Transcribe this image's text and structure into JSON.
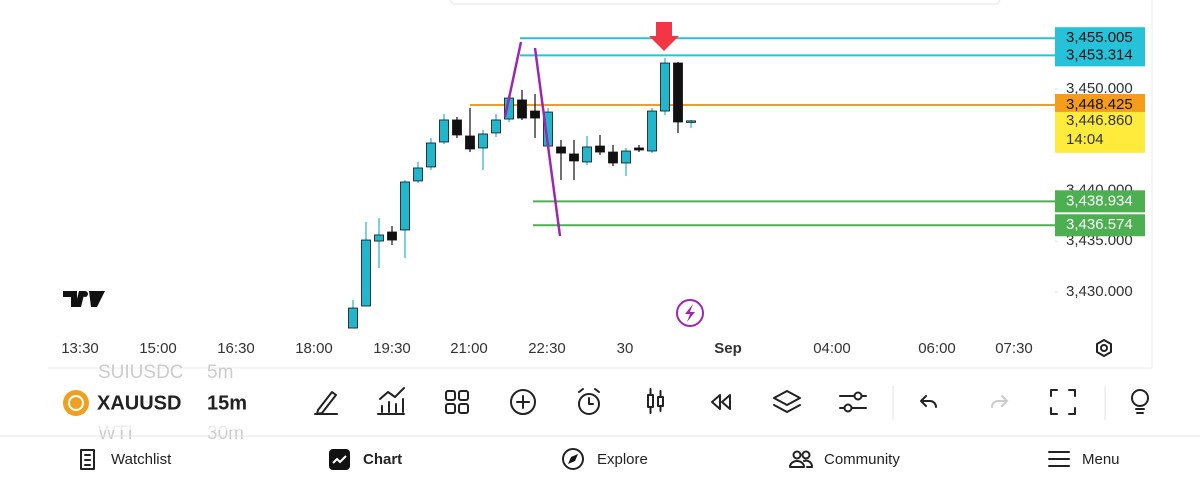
{
  "chart_data": {
    "type": "candlestick",
    "symbol": "XAUUSD",
    "interval": "15m",
    "ylim": [
      3425,
      3460
    ],
    "yticks": [
      {
        "value": 3450,
        "label": "3,450.000"
      },
      {
        "value": 3440,
        "label": "3,440.000"
      },
      {
        "value": 3435,
        "label": "3,435.000"
      },
      {
        "value": 3430,
        "label": "3,430.000"
      }
    ],
    "time_labels": [
      "13:30",
      "15:00",
      "16:30",
      "18:00",
      "19:30",
      "21:00",
      "22:30",
      "30",
      "Sep",
      "04:00",
      "06:00",
      "07:30"
    ],
    "up_color": "#22b5cc",
    "down_color": "#111111",
    "candles": [
      {
        "open": 3426.45,
        "high": 3429.21,
        "low": 3426.45,
        "close": 3428.42
      },
      {
        "open": 3428.62,
        "high": 3436.9,
        "low": 3428.62,
        "close": 3435.12
      },
      {
        "open": 3435.02,
        "high": 3437.29,
        "low": 3432.36,
        "close": 3435.62
      },
      {
        "open": 3435.91,
        "high": 3436.5,
        "low": 3434.63,
        "close": 3435.12
      },
      {
        "open": 3436.11,
        "high": 3441.03,
        "low": 3433.35,
        "close": 3440.84
      },
      {
        "open": 3440.94,
        "high": 3442.81,
        "low": 3440.74,
        "close": 3442.22
      },
      {
        "open": 3442.32,
        "high": 3445.17,
        "low": 3442.02,
        "close": 3444.68
      },
      {
        "open": 3444.78,
        "high": 3447.54,
        "low": 3444.58,
        "close": 3446.95
      },
      {
        "open": 3446.95,
        "high": 3447.24,
        "low": 3445.17,
        "close": 3445.47
      },
      {
        "open": 3445.37,
        "high": 3448.13,
        "low": 3443.79,
        "close": 3444.09
      },
      {
        "open": 3444.19,
        "high": 3445.96,
        "low": 3442.02,
        "close": 3445.57
      },
      {
        "open": 3445.67,
        "high": 3447.54,
        "low": 3445.27,
        "close": 3446.95
      },
      {
        "open": 3447.04,
        "high": 3449.41,
        "low": 3446.75,
        "close": 3449.11
      },
      {
        "open": 3448.92,
        "high": 3449.9,
        "low": 3446.95,
        "close": 3447.14
      },
      {
        "open": 3447.83,
        "high": 3449.51,
        "low": 3445.17,
        "close": 3447.14
      },
      {
        "open": 3444.38,
        "high": 3448.13,
        "low": 3443.99,
        "close": 3447.73
      },
      {
        "open": 3444.29,
        "high": 3444.98,
        "low": 3441.03,
        "close": 3443.69
      },
      {
        "open": 3443.6,
        "high": 3444.98,
        "low": 3441.03,
        "close": 3442.91
      },
      {
        "open": 3442.81,
        "high": 3445.37,
        "low": 3442.51,
        "close": 3444.29
      },
      {
        "open": 3444.38,
        "high": 3445.47,
        "low": 3443.5,
        "close": 3443.79
      },
      {
        "open": 3443.79,
        "high": 3444.48,
        "low": 3442.41,
        "close": 3442.71
      },
      {
        "open": 3442.71,
        "high": 3444.19,
        "low": 3441.43,
        "close": 3443.89
      },
      {
        "open": 3444.19,
        "high": 3444.48,
        "low": 3443.79,
        "close": 3443.99
      },
      {
        "open": 3443.89,
        "high": 3448.13,
        "low": 3443.69,
        "close": 3447.83
      },
      {
        "open": 3447.83,
        "high": 3453.05,
        "low": 3447.44,
        "close": 3452.56
      },
      {
        "open": 3452.56,
        "high": 3452.66,
        "low": 3445.67,
        "close": 3446.75
      },
      {
        "open": 3446.86,
        "high": 3446.95,
        "low": 3446.16,
        "close": 3446.86
      }
    ],
    "levels": [
      {
        "value": 3455.005,
        "label": "3,455.005",
        "color": "#26c2d9"
      },
      {
        "value": 3453.314,
        "label": "3,453.314",
        "color": "#26c2d9"
      },
      {
        "value": 3448.425,
        "label": "3,448.425",
        "color": "#f59c1a"
      },
      {
        "value": 3438.934,
        "label": "3,438.934",
        "color": "#4caf50"
      },
      {
        "value": 3436.574,
        "label": "3,436.574",
        "color": "#4caf50"
      }
    ],
    "last_price": {
      "value": 3446.86,
      "label": "3,446.860",
      "countdown": "14:04",
      "color": "#ffeb3b"
    }
  },
  "toolbar": {
    "ghost_above": [
      "SUIUSDC",
      "5m"
    ],
    "ghost_below": [
      "WTI",
      "30m"
    ]
  },
  "nav": [
    "Watchlist",
    "Chart",
    "Explore",
    "Community",
    "Menu"
  ]
}
